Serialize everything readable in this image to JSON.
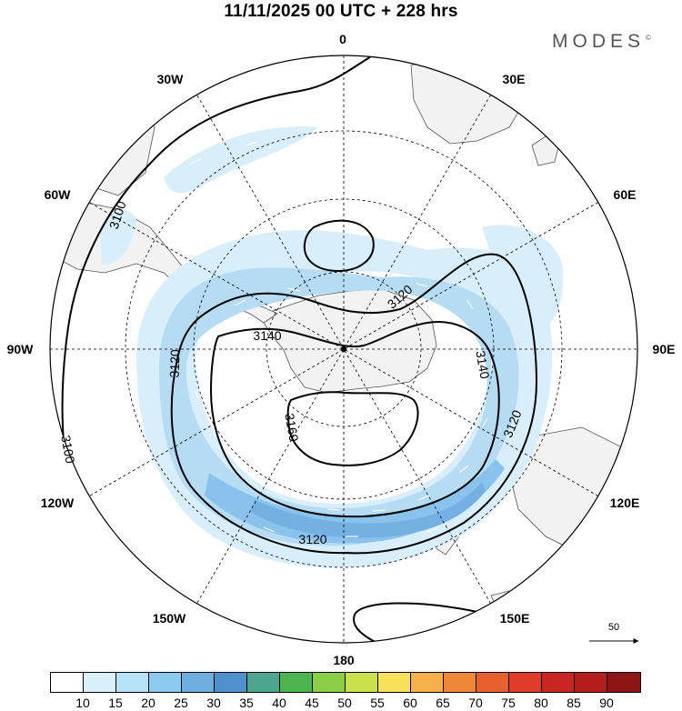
{
  "title": "11/11/2025  00 UTC  + 228 hrs",
  "brand": "MODES",
  "brand_mark": "©",
  "map": {
    "projection": "south-polar-stereographic",
    "longitude_labels": [
      "0",
      "30E",
      "60E",
      "90E",
      "120E",
      "150E",
      "180",
      "150W",
      "120W",
      "90W",
      "60W",
      "30W"
    ],
    "contour_labels": [
      "3100",
      "3100",
      "3120",
      "3120",
      "3120",
      "3120",
      "3140",
      "3140",
      "3160"
    ],
    "reference_vector": "50",
    "colors": {
      "land": "#f2f2f2",
      "coast": "#555555",
      "contour": "#000000",
      "wind_light": "#cfe9f8",
      "wind_mid": "#a6d3f0",
      "wind_strong": "#7fbbe6",
      "wind_max": "#6aa6dc"
    }
  },
  "colorbar": {
    "ticks": [
      "10",
      "15",
      "20",
      "25",
      "30",
      "35",
      "40",
      "45",
      "50",
      "55",
      "60",
      "65",
      "70",
      "75",
      "80",
      "85",
      "90"
    ],
    "colors": [
      "#ffffff",
      "#d8f0fc",
      "#b5e2f6",
      "#8ccaef",
      "#6eaee0",
      "#4f91cc",
      "#4ea58f",
      "#4cb54f",
      "#8ccd46",
      "#cbe14c",
      "#f7e05a",
      "#f5b04a",
      "#ef8738",
      "#e8602f",
      "#df3d2a",
      "#c92623",
      "#b31d1c",
      "#8d1515"
    ]
  }
}
